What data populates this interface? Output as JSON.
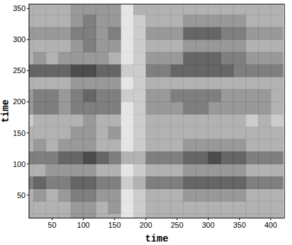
{
  "chart_data": {
    "type": "heatmap",
    "x_label": "time",
    "y_label": "time",
    "xlim": [
      13,
      422
    ],
    "ylim": [
      13,
      357
    ],
    "xticks": [
      50,
      100,
      150,
      200,
      250,
      300,
      350,
      400
    ],
    "yticks": [
      50,
      100,
      150,
      200,
      250,
      300,
      350
    ],
    "color": "#000000",
    "density_range": [
      0,
      10
    ],
    "x_bins": [
      0,
      20,
      40,
      60,
      80,
      100,
      120,
      140,
      160,
      180,
      200,
      220,
      240,
      260,
      280,
      300,
      320,
      340,
      360,
      380,
      400,
      420
    ],
    "y_bins": [
      0,
      20,
      40,
      60,
      80,
      100,
      120,
      140,
      160,
      180,
      200,
      220,
      240,
      260,
      280,
      300,
      320,
      340,
      360
    ],
    "cells": [
      [
        3,
        3,
        3,
        3,
        4,
        4,
        3,
        3,
        1,
        2,
        3,
        3,
        3,
        3,
        3,
        3,
        3,
        3,
        3,
        3,
        3
      ],
      [
        3,
        3,
        3,
        3,
        4,
        4,
        3,
        4,
        1,
        2,
        3,
        3,
        3,
        3,
        3,
        3,
        3,
        3,
        3,
        3,
        3
      ],
      [
        3,
        4,
        3,
        4,
        5,
        5,
        4,
        4,
        1,
        2,
        3,
        3,
        3,
        4,
        4,
        4,
        4,
        4,
        3,
        3,
        3
      ],
      [
        5,
        6,
        5,
        5,
        6,
        6,
        5,
        5,
        2,
        3,
        5,
        5,
        5,
        6,
        6,
        6,
        6,
        6,
        5,
        5,
        5
      ],
      [
        3,
        3,
        4,
        4,
        4,
        4,
        3,
        3,
        1,
        2,
        3,
        3,
        3,
        4,
        4,
        4,
        4,
        4,
        3,
        3,
        3
      ],
      [
        5,
        5,
        5,
        6,
        6,
        7,
        6,
        5,
        3,
        3,
        5,
        5,
        5,
        6,
        6,
        7,
        6,
        6,
        5,
        5,
        5
      ],
      [
        3,
        4,
        3,
        4,
        4,
        4,
        3,
        3,
        1,
        2,
        3,
        3,
        3,
        4,
        4,
        4,
        4,
        4,
        3,
        3,
        3
      ],
      [
        3,
        3,
        3,
        3,
        4,
        4,
        3,
        4,
        1,
        2,
        3,
        3,
        3,
        3,
        3,
        3,
        3,
        3,
        3,
        3,
        3
      ],
      [
        2,
        3,
        3,
        3,
        3,
        4,
        3,
        3,
        1,
        2,
        3,
        3,
        3,
        3,
        3,
        3,
        3,
        3,
        2,
        3,
        2
      ],
      [
        4,
        5,
        5,
        4,
        5,
        5,
        5,
        5,
        1,
        2,
        4,
        4,
        4,
        5,
        5,
        4,
        4,
        4,
        4,
        4,
        3
      ],
      [
        4,
        5,
        5,
        4,
        5,
        6,
        5,
        5,
        2,
        2,
        4,
        4,
        5,
        5,
        5,
        5,
        4,
        4,
        4,
        4,
        3
      ],
      [
        3,
        3,
        3,
        3,
        4,
        4,
        4,
        4,
        1,
        2,
        3,
        3,
        3,
        3,
        3,
        3,
        3,
        3,
        3,
        3,
        3
      ],
      [
        6,
        6,
        6,
        6,
        7,
        7,
        6,
        6,
        2,
        2,
        5,
        5,
        6,
        6,
        6,
        6,
        6,
        5,
        5,
        5,
        5
      ],
      [
        3,
        4,
        3,
        4,
        4,
        4,
        4,
        3,
        1,
        2,
        4,
        4,
        4,
        6,
        6,
        6,
        5,
        5,
        4,
        4,
        4
      ],
      [
        3,
        3,
        3,
        3,
        4,
        5,
        4,
        4,
        1,
        2,
        3,
        3,
        3,
        4,
        4,
        4,
        4,
        4,
        3,
        3,
        3
      ],
      [
        4,
        4,
        4,
        4,
        5,
        5,
        4,
        5,
        1,
        2,
        4,
        4,
        4,
        6,
        6,
        6,
        5,
        5,
        4,
        4,
        4
      ],
      [
        3,
        3,
        3,
        3,
        4,
        5,
        4,
        4,
        1,
        2,
        3,
        3,
        3,
        4,
        4,
        4,
        4,
        4,
        3,
        3,
        3
      ],
      [
        3,
        3,
        3,
        3,
        4,
        4,
        4,
        4,
        1,
        3,
        3,
        3,
        3,
        3,
        3,
        3,
        3,
        3,
        3,
        3,
        3
      ]
    ]
  }
}
